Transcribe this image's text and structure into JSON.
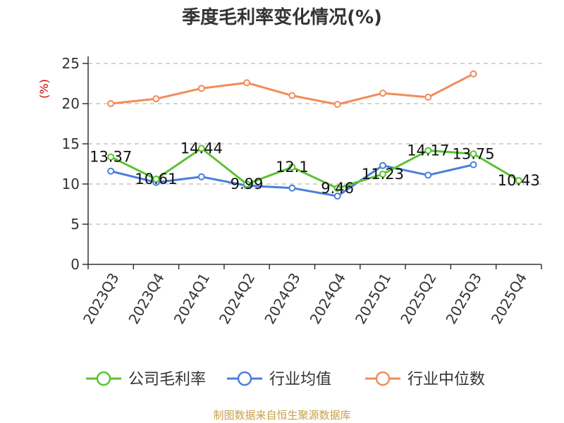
{
  "title": "季度毛利率变化情况(%)",
  "source": "制图数据来自恒生聚源数据库",
  "chart_data": {
    "type": "line",
    "title": "季度毛利率变化情况(%)",
    "ylabel": "(%)",
    "ylim": [
      0,
      25
    ],
    "yticks": [
      0,
      5,
      10,
      15,
      20,
      25
    ],
    "grid": true,
    "legend_position": "bottom",
    "categories": [
      "2023Q3",
      "2023Q4",
      "2024Q1",
      "2024Q2",
      "2024Q3",
      "2024Q4",
      "2025Q1",
      "2025Q2",
      "2025Q3",
      "2025Q4"
    ],
    "series": [
      {
        "name": "公司毛利率",
        "color": "#5bc232",
        "values": [
          13.37,
          10.61,
          14.44,
          9.99,
          12.1,
          9.46,
          11.23,
          14.17,
          13.75,
          10.43
        ],
        "labels": [
          "13.37",
          "10.61",
          "14.44",
          "9.99",
          "12.1",
          "9.46",
          "11.23",
          "14.17",
          "13.75",
          "10.43"
        ]
      },
      {
        "name": "行业均值",
        "color": "#4a7fdc",
        "values": [
          11.6,
          10.2,
          10.9,
          9.8,
          9.5,
          8.5,
          12.3,
          11.1,
          12.4,
          null
        ]
      },
      {
        "name": "行业中位数",
        "color": "#f28c5a",
        "values": [
          20.0,
          20.6,
          21.9,
          22.6,
          21.0,
          19.9,
          21.3,
          20.8,
          23.7,
          null
        ]
      }
    ]
  }
}
